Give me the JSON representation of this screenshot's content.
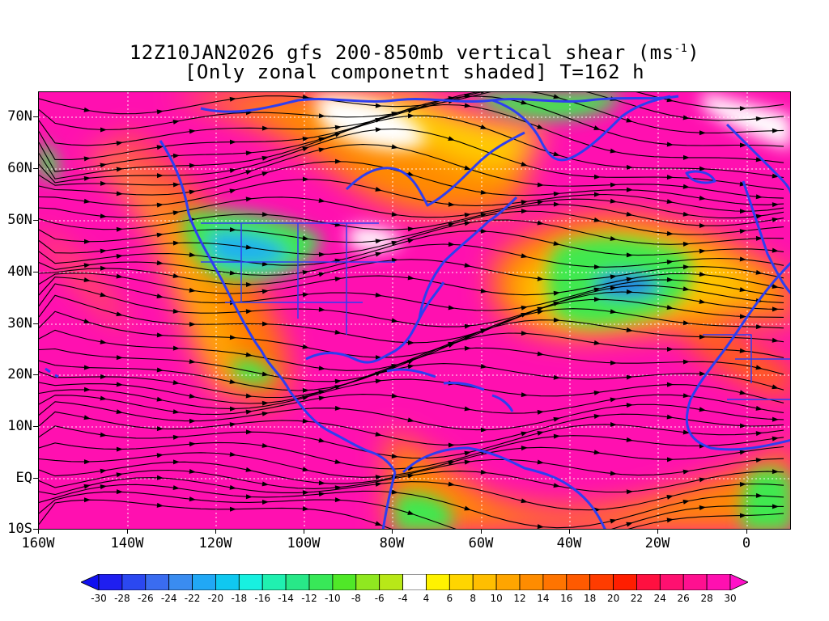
{
  "title": {
    "line1_prefix": "12Z10JAN2026 gfs 200-850mb vertical shear (ms",
    "line1_sup": "-1",
    "line1_suffix": ")",
    "line2": "[Only zonal componetnt shaded] T=162 h"
  },
  "map": {
    "lat_labels": [
      "70N",
      "60N",
      "50N",
      "40N",
      "30N",
      "20N",
      "10N",
      "EQ",
      "10S"
    ],
    "lon_labels": [
      "160W",
      "140W",
      "120W",
      "100W",
      "80W",
      "60W",
      "40W",
      "20W",
      "0"
    ],
    "lon_range": [
      -160,
      10
    ],
    "lat_range": [
      -10,
      75
    ],
    "coastline_color": "#2e3ef0",
    "contour_color": "#9a1fb0",
    "streamline_color": "#000000"
  },
  "colorbar": {
    "labels": [
      "-30",
      "-28",
      "-26",
      "-24",
      "-22",
      "-20",
      "-18",
      "-16",
      "-14",
      "-12",
      "-10",
      "-8",
      "-6",
      "-4",
      "4",
      "6",
      "8",
      "10",
      "12",
      "14",
      "16",
      "18",
      "20",
      "22",
      "24",
      "26",
      "28",
      "30"
    ],
    "colors": [
      "#1f1ff0",
      "#2b48f0",
      "#3a6cf0",
      "#3a8cf0",
      "#21a8f5",
      "#10c8f0",
      "#18f0e0",
      "#20f0b0",
      "#28e888",
      "#38e858",
      "#50e828",
      "#90e820",
      "#b8e818",
      "#ffffff",
      "#fff200",
      "#ffd500",
      "#ffbe00",
      "#ffa500",
      "#ff8c00",
      "#ff7400",
      "#ff5a00",
      "#ff3c00",
      "#ff1e00",
      "#ff1040",
      "#ff1070",
      "#ff1090",
      "#ff10b0"
    ]
  }
}
